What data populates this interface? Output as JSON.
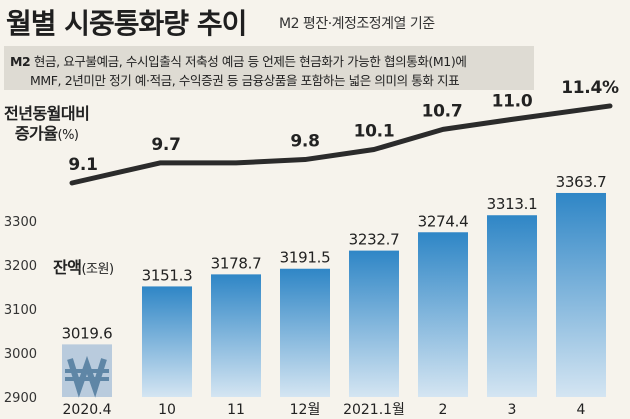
{
  "header": {
    "title": "월별 시중통화량 추이",
    "subtitle": "M2 평잔·계정조정계열 기준"
  },
  "definition": {
    "term": "M2",
    "line1": "현금, 요구불예금, 수시입출식 저축성 예금 등 언제든 현금화가 가능한 협의통화(M1)에",
    "line2": "MMF, 2년미만 정기 예·적금, 수익증권 등 금융상품을 포함하는 넓은 의미의 통화 지표"
  },
  "growth_label": {
    "line1": "전년동월대비",
    "line2": "증가율",
    "unit": "(%)"
  },
  "balance_label": {
    "text": "잔액",
    "unit": "(조원)"
  },
  "colors": {
    "bar_top": "#2f86c6",
    "bar_bottom": "#d4e5f2",
    "first_bar": "#b9cbdd",
    "line": "#2b2b2b",
    "won_symbol": "#5f86a6"
  },
  "icons": {
    "first_bar_symbol": "won-icon"
  },
  "chart_data": [
    {
      "type": "bar",
      "categories": [
        "2020.4",
        "10",
        "11",
        "12월",
        "2021.1월",
        "2",
        "3",
        "4"
      ],
      "values": [
        3019.6,
        3151.3,
        3178.7,
        3191.5,
        3232.7,
        3274.4,
        3313.1,
        3363.7
      ],
      "value_labels": [
        "3019.6",
        "3151.3",
        "3178.7",
        "3191.5",
        "3232.7",
        "3274.4",
        "3313.1",
        "3363.7"
      ],
      "ylabel": "잔액(조원)",
      "ylim": [
        2900,
        3400
      ],
      "yticks": [
        2900,
        3000,
        3100,
        3200,
        3300
      ]
    },
    {
      "type": "line",
      "categories": [
        "2020.4",
        "10",
        "11",
        "12월",
        "2021.1월",
        "2",
        "3",
        "4"
      ],
      "values": [
        9.1,
        9.7,
        9.7,
        9.8,
        10.1,
        10.7,
        11.0,
        11.4
      ],
      "value_labels": [
        "9.1",
        "9.7",
        "",
        "9.8",
        "10.1",
        "10.7",
        "11.0",
        "11.4%"
      ],
      "ylabel": "전년동월대비 증가율(%)"
    }
  ]
}
